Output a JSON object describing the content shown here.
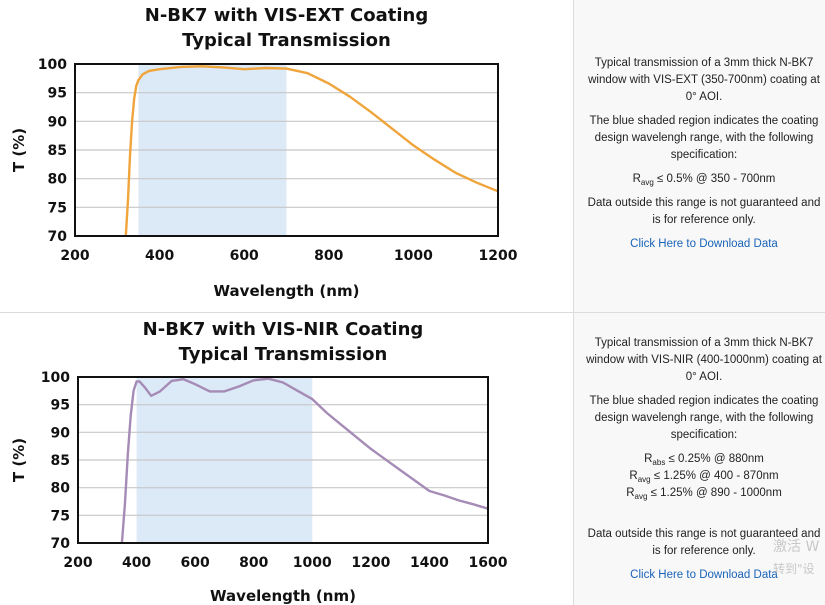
{
  "chart_data": [
    {
      "type": "line",
      "title": "N-BK7 with VIS-EXT Coating",
      "subtitle": "Typical Transmission",
      "xlabel": "Wavelength (nm)",
      "ylabel": "T (%)",
      "xlim": [
        200,
        1200
      ],
      "ylim": [
        70,
        100
      ],
      "xticks": [
        200,
        400,
        600,
        800,
        1000,
        1200
      ],
      "yticks": [
        70,
        75,
        80,
        85,
        90,
        95,
        100
      ],
      "shaded_region": [
        350,
        700
      ],
      "grid": true,
      "series": [
        {
          "color": "#f0a43c",
          "x": [
            320,
            325,
            330,
            335,
            340,
            345,
            350,
            360,
            375,
            400,
            450,
            500,
            550,
            600,
            650,
            700,
            750,
            800,
            850,
            900,
            950,
            1000,
            1050,
            1100,
            1150,
            1200
          ],
          "y": [
            70,
            76,
            84,
            90,
            94,
            96.2,
            97.2,
            98.2,
            98.8,
            99.1,
            99.5,
            99.6,
            99.4,
            99.1,
            99.3,
            99.2,
            98.4,
            96.6,
            94.3,
            91.6,
            88.7,
            85.8,
            83.3,
            81,
            79.3,
            77.8
          ]
        }
      ]
    },
    {
      "type": "line",
      "title": "N-BK7 with VIS-NIR Coating",
      "subtitle": "Typical Transmission",
      "xlabel": "Wavelength (nm)",
      "ylabel": "T (%)",
      "xlim": [
        200,
        1600
      ],
      "ylim": [
        70,
        100
      ],
      "xticks": [
        200,
        400,
        600,
        800,
        1000,
        1200,
        1400,
        1600
      ],
      "yticks": [
        70,
        75,
        80,
        85,
        90,
        95,
        100
      ],
      "shaded_region": [
        400,
        1000
      ],
      "grid": true,
      "series": [
        {
          "color": "#a58bb5",
          "x": [
            350,
            360,
            370,
            380,
            390,
            400,
            410,
            430,
            450,
            480,
            520,
            560,
            600,
            650,
            700,
            750,
            800,
            850,
            900,
            950,
            1000,
            1050,
            1100,
            1200,
            1300,
            1350,
            1400,
            1450,
            1500,
            1550,
            1600
          ],
          "y": [
            70,
            77,
            86,
            93,
            97.5,
            99.2,
            99.2,
            98,
            96.6,
            97.4,
            99.3,
            99.6,
            98.7,
            97.4,
            97.4,
            98.3,
            99.4,
            99.7,
            99,
            97.5,
            96,
            93.5,
            91.3,
            87,
            83.2,
            81.3,
            79.4,
            78.6,
            77.7,
            77,
            76.2
          ]
        }
      ]
    }
  ],
  "panels": [
    {
      "desc_line1": "Typical transmission of a 3mm thick N-BK7 window with VIS-EXT (350-700nm) coating at 0° AOI.",
      "desc_line2": "The blue shaded region indicates the coating design wavelengh range, with the following specification:",
      "specs": [
        {
          "sym": "R",
          "sub": "avg",
          "rest": "≤ 0.5% @ 350 - 700nm"
        }
      ],
      "note": "Data outside this range is not guaranteed and is for reference only.",
      "link": "Click Here to Download Data"
    },
    {
      "desc_line1": "Typical transmission of a 3mm thick N-BK7 window with VIS-NIR (400-1000nm) coating at 0° AOI.",
      "desc_line2": "The blue shaded region indicates the coating design wavelengh range, with the following specification:",
      "specs": [
        {
          "sym": "R",
          "sub": "abs",
          "rest": "≤ 0.25% @ 880nm"
        },
        {
          "sym": "R",
          "sub": "avg",
          "rest": "≤ 1.25% @ 400 - 870nm"
        },
        {
          "sym": "R",
          "sub": "avg",
          "rest": "≤ 1.25% @ 890 - 1000nm"
        }
      ],
      "note": "Data outside this range is not guaranteed and is for reference only.",
      "link": "Click Here to Download Data"
    }
  ],
  "watermark": {
    "line1": "激活 W",
    "line2": "转到\"设"
  },
  "colors": {
    "shade": "#dce9f6",
    "grid": "#c8c8c8",
    "link": "#1a63b8"
  }
}
